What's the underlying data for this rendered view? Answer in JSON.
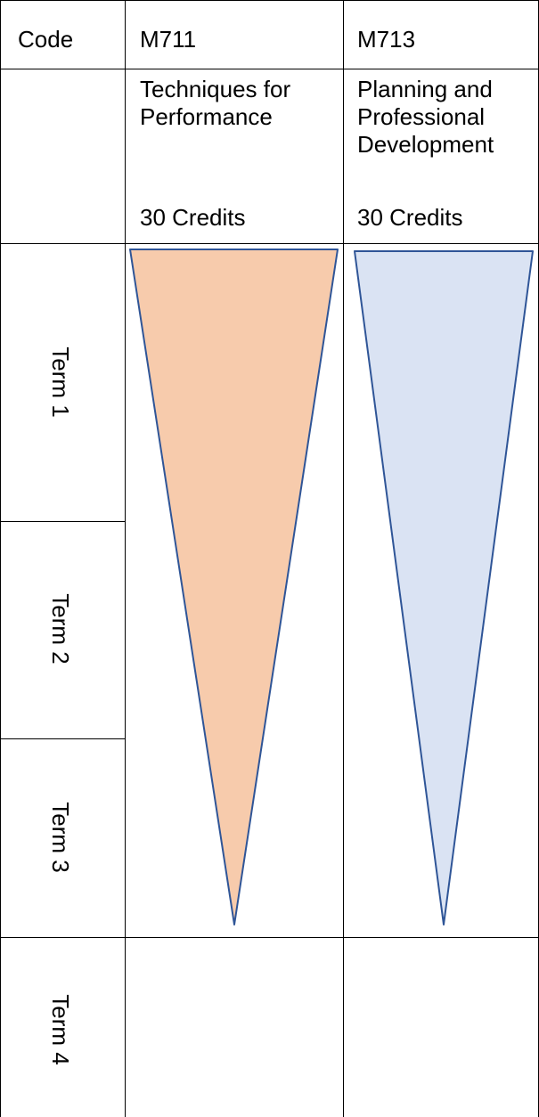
{
  "table": {
    "header": {
      "code_label": "Code",
      "codes": [
        "M711",
        "M713"
      ]
    },
    "modules": [
      {
        "code": "M711",
        "title_lines": [
          "Techniques for",
          "Performance"
        ],
        "credits": "30 Credits",
        "fill_color": "#f7cbac",
        "stroke_color": "#2f5597"
      },
      {
        "code": "M713",
        "title_lines": [
          "Planning and",
          "Professional",
          "Development"
        ],
        "credits": "30 Credits",
        "fill_color": "#dae3f3",
        "stroke_color": "#2f5597"
      }
    ],
    "terms": [
      "Term 1",
      "Term 2",
      "Term 3",
      "Term 4"
    ]
  }
}
